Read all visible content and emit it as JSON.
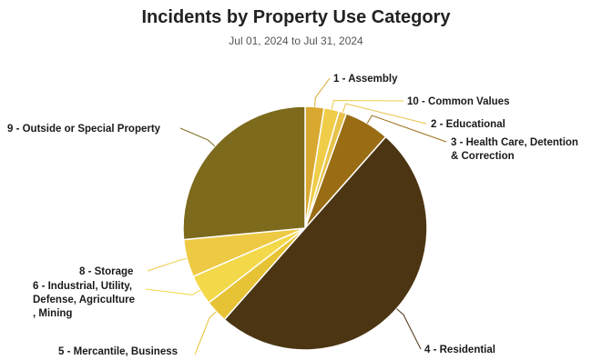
{
  "chart_data": {
    "type": "pie",
    "title": "Incidents by Property Use Category",
    "subtitle": "Jul 01, 2024 to Jul 31, 2024",
    "slices": [
      {
        "label": "1 - Assembly",
        "value": 2.5,
        "color": "#d9a830"
      },
      {
        "label": "10 - Common Values",
        "value": 2.0,
        "color": "#f0cd48"
      },
      {
        "label": "2 - Educational",
        "value": 1.0,
        "color": "#e8c24a"
      },
      {
        "label": "3 - Health Care, Detention & Correction",
        "value": 6.0,
        "color": "#9a6d14"
      },
      {
        "label": "4 - Residential",
        "value": 50.0,
        "color": "#4b3512"
      },
      {
        "label": "5 - Mercantile, Business",
        "value": 3.0,
        "color": "#e6c235"
      },
      {
        "label": "6 - Industrial, Utility, Defense, Agriculture, Mining",
        "value": 4.0,
        "color": "#f3d84a"
      },
      {
        "label": "8 - Storage",
        "value": 5.0,
        "color": "#eec943"
      },
      {
        "label": "9 - Outside or Special Property",
        "value": 26.5,
        "color": "#7e6a1c"
      }
    ]
  }
}
